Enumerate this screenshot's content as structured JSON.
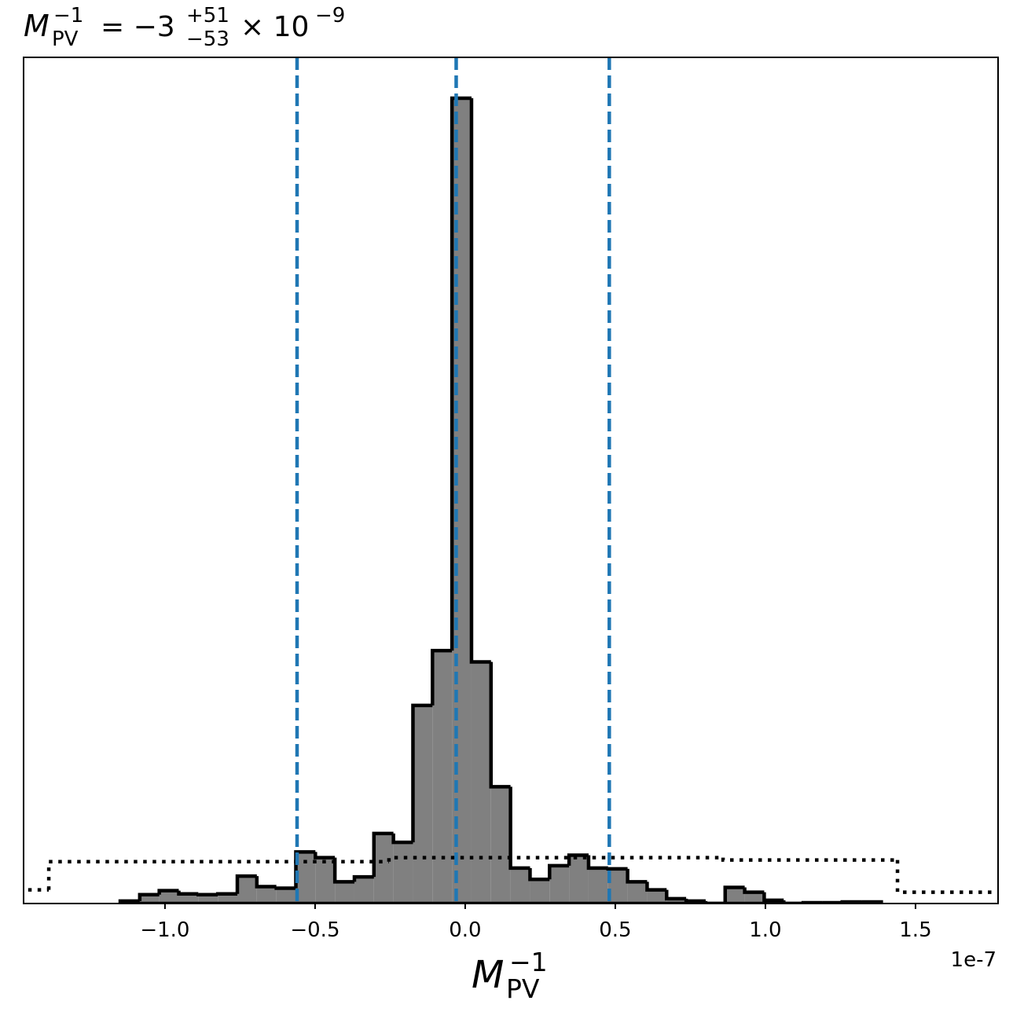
{
  "chart_data": {
    "type": "histogram",
    "title": {
      "symbol": "M",
      "subscript": "PV",
      "superscript": "−1",
      "value": "= −3",
      "plus": "+51",
      "minus": "−53",
      "times": "× 10",
      "exponent": "−9"
    },
    "xlabel": {
      "symbol": "M",
      "subscript": "PV",
      "superscript": "−1"
    },
    "x_offset_label": "1e-7",
    "xlim": [
      -1.471,
      1.775
    ],
    "ylim": [
      0,
      105.07
    ],
    "xticks": [
      {
        "value": -1,
        "label": "−1.0"
      },
      {
        "value": -0.5,
        "label": "−0.5"
      },
      {
        "value": 0,
        "label": "0.0"
      },
      0.5,
      {
        "value": 1,
        "label": "1.0"
      },
      1.5
    ],
    "bins": [
      -1.149,
      -1.084,
      -1.019,
      -0.954,
      -0.889,
      -0.824,
      -0.759,
      -0.694,
      -0.629,
      -0.564,
      -0.499,
      -0.434,
      -0.369,
      -0.304,
      -0.239,
      -0.174,
      -0.109,
      -0.044,
      0.021,
      0.086,
      0.151,
      0.216,
      0.281,
      0.346,
      0.411,
      0.476,
      0.541,
      0.606,
      0.671,
      0.736,
      0.801,
      0.866,
      0.931,
      0.996,
      1.061,
      1.126,
      1.191,
      1.256,
      1.321,
      1.386
    ],
    "values": [
      0.3,
      1.1,
      1.6,
      1.2,
      1.1,
      1.2,
      3.4,
      2.1,
      1.9,
      6.4,
      5.7,
      2.7,
      3.3,
      8.7,
      7.6,
      24.6,
      31.4,
      100,
      30.0,
      14.5,
      4.4,
      3.0,
      4.7,
      6.0,
      4.4,
      4.3,
      2.7,
      1.7,
      0.6,
      0.3,
      0,
      2.0,
      1.4,
      0.4,
      0,
      0.1,
      0.1,
      0.2,
      0.2
    ],
    "color": "#808080",
    "edge_color": "#000000",
    "prior": {
      "bins": [
        -1.55,
        -1.387,
        -0.254,
        0.859,
        1.44,
        1.85
      ],
      "values": [
        1.7,
        5.2,
        5.7,
        5.4,
        1.4
      ],
      "color": "#000000"
    },
    "vlines": {
      "values": [
        -0.56,
        -0.03,
        0.48
      ],
      "color": "#1f77b4"
    }
  }
}
